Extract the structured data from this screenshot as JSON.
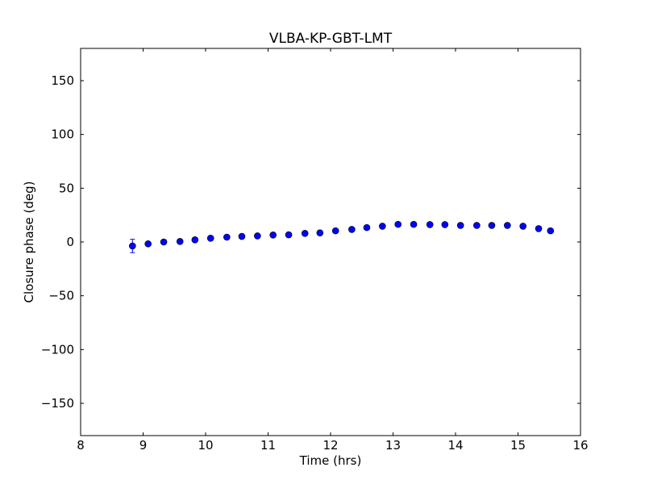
{
  "chart_data": {
    "type": "scatter",
    "title": "VLBA-KP-GBT-LMT",
    "xlabel": "Time (hrs)",
    "ylabel": "Closure phase (deg)",
    "xlim": [
      8,
      16
    ],
    "ylim": [
      -180,
      180
    ],
    "xticks": [
      8,
      9,
      10,
      11,
      12,
      13,
      14,
      15,
      16
    ],
    "yticks": [
      -150,
      -100,
      -50,
      0,
      50,
      100,
      150
    ],
    "ytick_labels": [
      "−150",
      "−100",
      "−50",
      "0",
      "50",
      "100",
      "150"
    ],
    "grid": false,
    "marker_color": "#0000ff",
    "x": [
      8.83,
      9.08,
      9.33,
      9.59,
      9.83,
      10.08,
      10.34,
      10.58,
      10.83,
      11.08,
      11.33,
      11.59,
      11.83,
      12.08,
      12.34,
      12.58,
      12.83,
      13.08,
      13.33,
      13.59,
      13.83,
      14.08,
      14.34,
      14.58,
      14.83,
      15.08,
      15.33,
      15.52
    ],
    "y": [
      -3.7,
      -1.7,
      0.0,
      0.5,
      2.0,
      3.5,
      4.5,
      5.2,
      5.7,
      6.5,
      6.7,
      8.0,
      8.5,
      10.4,
      11.7,
      13.4,
      14.7,
      16.4,
      16.4,
      16.2,
      16.2,
      15.4,
      15.4,
      15.4,
      15.4,
      14.7,
      12.4,
      10.4
    ],
    "yerr": [
      6.2,
      1,
      1,
      1,
      1,
      1,
      1,
      1,
      1,
      1,
      1,
      1,
      1,
      1,
      1,
      1,
      1,
      1,
      1,
      1,
      1,
      1,
      1,
      1,
      1,
      1,
      1,
      1
    ]
  }
}
